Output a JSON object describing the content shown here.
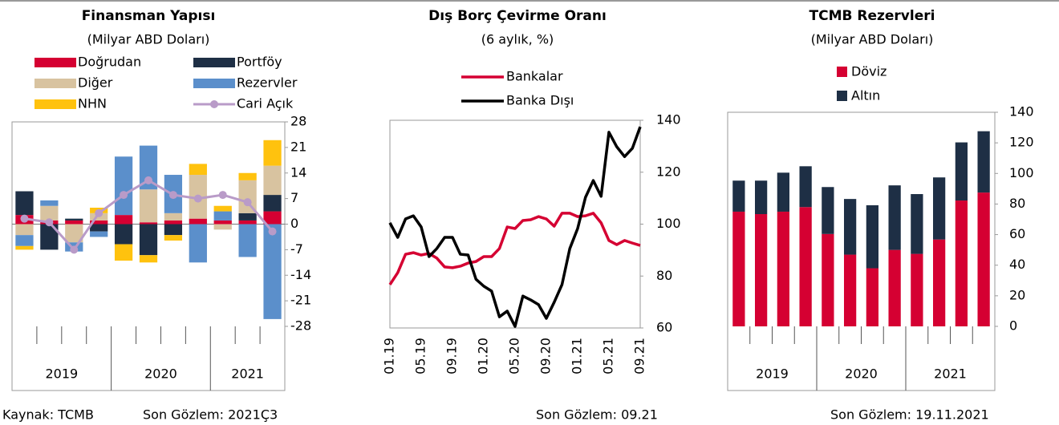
{
  "chart_data": [
    {
      "type": "bar",
      "stacked": true,
      "title": "Finansman Yapısı",
      "subtitle": "(Milyar ABD Doları)",
      "categories": [
        null,
        null,
        null,
        null,
        null,
        null,
        null,
        null,
        null,
        null,
        null
      ],
      "groups": [
        {
          "label": "2019",
          "count": 4
        },
        {
          "label": "2020",
          "count": 4
        },
        {
          "label": "2021",
          "count": 3
        }
      ],
      "ylim": [
        -28,
        28
      ],
      "yticks": [
        28,
        21,
        14,
        7,
        0,
        -7,
        -14,
        -21,
        -28
      ],
      "series": [
        {
          "name": "Doğrudan",
          "color": "#d50032",
          "values": [
            2.5,
            1,
            1,
            1,
            2.5,
            0.5,
            1,
            1.5,
            1,
            1,
            3.5
          ]
        },
        {
          "name": "Portföy",
          "color": "#1e2f45",
          "values": [
            6.5,
            -7,
            0.5,
            -2,
            -5.5,
            -8.5,
            -3,
            0,
            0,
            2,
            4.5
          ]
        },
        {
          "name": "Diğer",
          "color": "#d8c3a0",
          "values": [
            -3,
            4,
            -5,
            2,
            0,
            9,
            2,
            12,
            -1.5,
            9,
            8
          ]
        },
        {
          "name": "Rezervler",
          "color": "#5b8fcb",
          "values": [
            -3,
            1.5,
            -2.5,
            -1.5,
            16,
            12,
            10.5,
            -10.5,
            2.5,
            -9,
            -26
          ]
        },
        {
          "name": "NHN",
          "color": "#ffc20e",
          "values": [
            -1,
            0,
            0,
            1.5,
            -4.5,
            -2,
            -1.5,
            3,
            1.5,
            2,
            7
          ]
        },
        {
          "name": "Cari Açık",
          "type": "line",
          "color": "#b99bc8",
          "values": [
            1.5,
            0.5,
            -7,
            3,
            8,
            12,
            8,
            7,
            8,
            6,
            -2
          ]
        }
      ],
      "note": "Son Gözlem: 2021Ç3"
    },
    {
      "type": "line",
      "title": "Dış Borç Çevirme Oranı",
      "subtitle": "(6 aylık, %)",
      "categories": [
        "01.19",
        null,
        null,
        null,
        "05.19",
        null,
        null,
        null,
        "09.19",
        null,
        null,
        null,
        "01.20",
        null,
        null,
        null,
        "05.20",
        null,
        null,
        null,
        "09.20",
        null,
        null,
        null,
        "01.21",
        null,
        null,
        null,
        "05.21",
        null,
        null,
        null,
        "09.21"
      ],
      "ylim": [
        60,
        140
      ],
      "yticks": [
        60,
        80,
        100,
        120,
        140
      ],
      "series": [
        {
          "name": "Bankalar",
          "color": "#d50032",
          "values": [
            76.7,
            81.3,
            88.4,
            89,
            88.1,
            88.7,
            86.9,
            83.5,
            83.2,
            83.8,
            85,
            85.6,
            87.5,
            87.5,
            90.6,
            98.9,
            98.3,
            101.4,
            101.7,
            102.9,
            102,
            99.2,
            104.2,
            104.2,
            102.9,
            103.2,
            104.2,
            100.5,
            93.7,
            92.1,
            93.7,
            92.7,
            91.8
          ]
        },
        {
          "name": "Banka Dışı",
          "color": "#000000",
          "values": [
            100.5,
            94.9,
            102,
            103.2,
            98.9,
            87.5,
            90.6,
            94.9,
            94.9,
            88.4,
            88.1,
            78.8,
            76.1,
            74.2,
            64.3,
            66.5,
            60.6,
            72.3,
            70.8,
            69,
            63.7,
            69.9,
            76.7,
            90.6,
            98.3,
            110.3,
            116.8,
            110.7,
            135.4,
            129.8,
            126,
            129.2,
            137.5
          ]
        }
      ],
      "note": "Son Gözlem: 09.21"
    },
    {
      "type": "bar",
      "stacked": true,
      "title": "TCMB Rezervleri",
      "subtitle": "(Milyar ABD Doları)",
      "categories": [
        null,
        null,
        null,
        null,
        null,
        null,
        null,
        null,
        null,
        null,
        null,
        null
      ],
      "groups": [
        {
          "label": "2019",
          "count": 4
        },
        {
          "label": "2020",
          "count": 4
        },
        {
          "label": "2021",
          "count": 4
        }
      ],
      "ylim": [
        0,
        140
      ],
      "yticks": [
        0,
        20,
        40,
        60,
        80,
        100,
        120,
        140
      ],
      "series": [
        {
          "name": "Döviz",
          "color": "#d50032",
          "values": [
            75,
            73.4,
            75,
            78,
            60.4,
            46.9,
            38,
            50,
            47.4,
            56.8,
            82.3,
            87.5
          ]
        },
        {
          "name": "Altın",
          "color": "#1e2f45",
          "values": [
            20.3,
            21.9,
            25.5,
            26.7,
            30.7,
            36.4,
            41.2,
            42.2,
            39.1,
            40.6,
            38,
            40.1
          ]
        }
      ],
      "note": "Son Gözlem: 19.11.2021"
    }
  ],
  "footer": {
    "source": "Kaynak: TCMB"
  }
}
